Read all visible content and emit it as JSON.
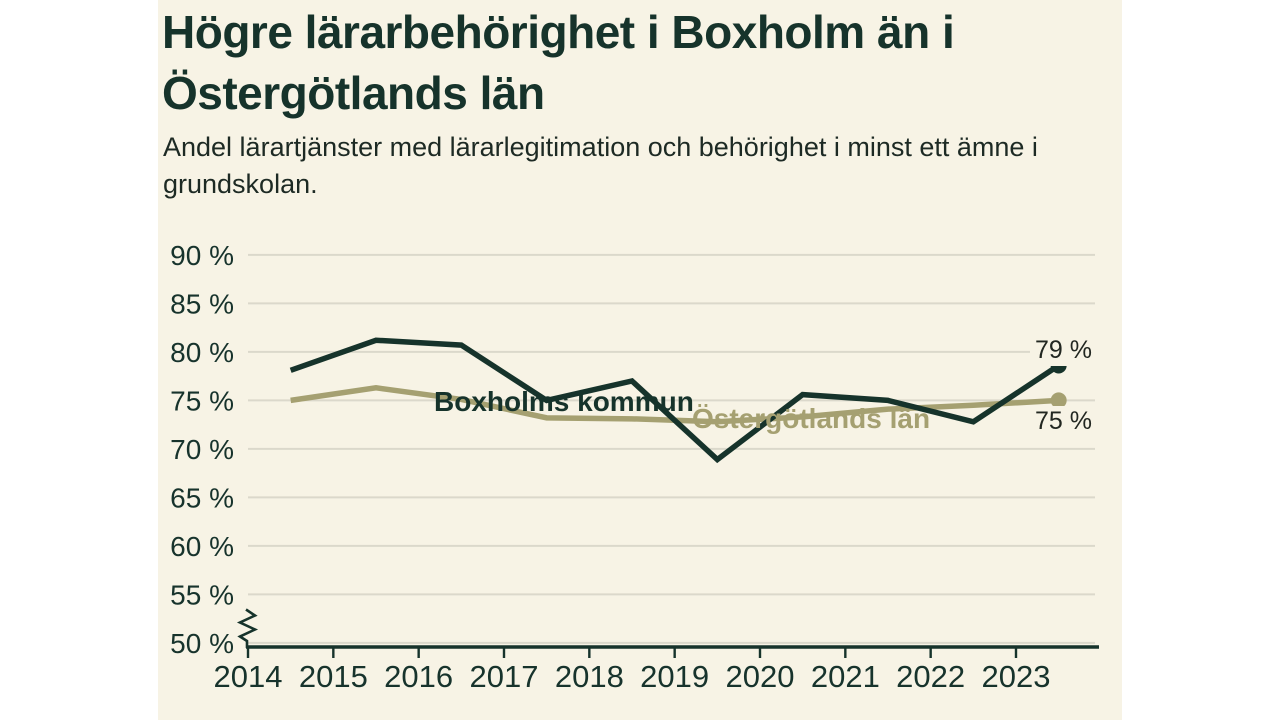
{
  "header": {
    "title": "Högre lärarbehörighet i Boxholm än i Östergötlands län",
    "title_lines": [
      "Högre lärarbehörighet i Boxholm än i",
      "Östergötlands län"
    ],
    "subtitle": "Andel lärartjänster med lärarlegitimation och behörighet i minst ett ämne i grundskolan.",
    "subtitle_lines": [
      "Andel lärartjänster med lärarlegitimation och behörighet i minst ett ämne i",
      "grundskolan."
    ]
  },
  "colors": {
    "background_card": "#f7f3e5",
    "background_page": "#ffffff",
    "dark_green": "#16332b",
    "olive": "#a5a071",
    "gridline": "#dbd8cb",
    "value_label_ink": "#222721"
  },
  "chart_data": {
    "type": "line",
    "title": "Högre lärarbehörighet i Boxholm än i Östergötlands län",
    "subtitle": "Andel lärartjänster med lärarlegitimation och behörighet i minst ett ämne i grundskolan.",
    "xlabel": "",
    "ylabel": "",
    "ylim": [
      50,
      92
    ],
    "grid": true,
    "axis_break_at_bottom": true,
    "legend_position": "inline-labels-on-lines",
    "x": [
      2014.5,
      2015.5,
      2016.5,
      2017.5,
      2018.5,
      2019.5,
      2020.5,
      2021.5,
      2022.5,
      2023.5
    ],
    "x_ticks": [
      {
        "label": "2014",
        "value": 2014
      },
      {
        "label": "2015",
        "value": 2015
      },
      {
        "label": "2016",
        "value": 2016
      },
      {
        "label": "2017",
        "value": 2017
      },
      {
        "label": "2018",
        "value": 2018
      },
      {
        "label": "2019",
        "value": 2019
      },
      {
        "label": "2020",
        "value": 2020
      },
      {
        "label": "2021",
        "value": 2021
      },
      {
        "label": "2022",
        "value": 2022
      },
      {
        "label": "2023",
        "value": 2023
      }
    ],
    "y_ticks": [
      {
        "label": "90 %",
        "value": 90
      },
      {
        "label": "85 %",
        "value": 85
      },
      {
        "label": "80 %",
        "value": 80
      },
      {
        "label": "75 %",
        "value": 75
      },
      {
        "label": "70 %",
        "value": 70
      },
      {
        "label": "65 %",
        "value": 65
      },
      {
        "label": "60 %",
        "value": 60
      },
      {
        "label": "55 %",
        "value": 55
      },
      {
        "label": "50 %",
        "value": 50
      }
    ],
    "series": [
      {
        "name": "Boxholms kommun",
        "color": "#16332b",
        "values": [
          78.1,
          81.2,
          80.7,
          75.0,
          77.0,
          68.9,
          75.6,
          75.0,
          72.8,
          78.6
        ],
        "end_label": "79 %",
        "end_marker": true
      },
      {
        "name": "Östergötlands län",
        "color": "#a5a071",
        "values": [
          75.0,
          76.3,
          75.1,
          73.2,
          73.1,
          72.8,
          73.3,
          74.1,
          74.5,
          75.0
        ],
        "end_label": "75 %",
        "end_marker": true
      }
    ]
  }
}
